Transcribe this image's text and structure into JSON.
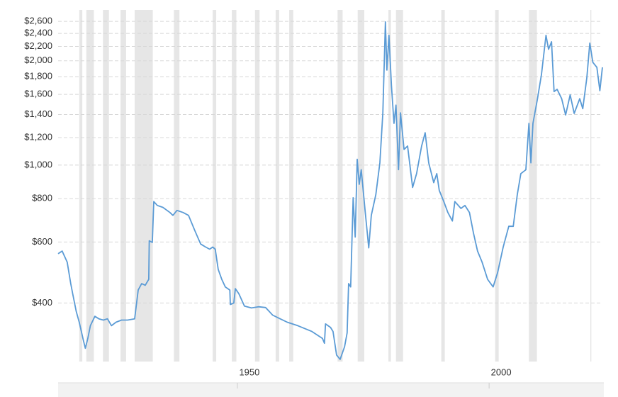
{
  "chart_data": {
    "type": "line",
    "log_scale": true,
    "grid": true,
    "xlim": [
      1914.4,
      2022.5
    ],
    "ylim": [
      271,
      2805
    ],
    "xticks": [
      1950,
      2000
    ],
    "yticks": [
      {
        "value": 400,
        "label": "$400"
      },
      {
        "value": 600,
        "label": "$600"
      },
      {
        "value": 800,
        "label": "$800"
      },
      {
        "value": 1000,
        "label": "$1,000"
      },
      {
        "value": 1200,
        "label": "$1,200"
      },
      {
        "value": 1400,
        "label": "$1,400"
      },
      {
        "value": 1600,
        "label": "$1,600"
      },
      {
        "value": 1800,
        "label": "$1,800"
      },
      {
        "value": 2000,
        "label": "$2,000"
      },
      {
        "value": 2200,
        "label": "$2,200"
      },
      {
        "value": 2400,
        "label": "$2,400"
      },
      {
        "value": 2600,
        "label": "$2,600"
      }
    ],
    "recession_color": "#e6e6e6",
    "recessions": [
      [
        1918.6,
        1919.2
      ],
      [
        1920,
        1921.5
      ],
      [
        1923.3,
        1924.5
      ],
      [
        1926.8,
        1927.9
      ],
      [
        1929.6,
        1933.2
      ],
      [
        1937.4,
        1938.5
      ],
      [
        1945.1,
        1945.8
      ],
      [
        1948.9,
        1949.8
      ],
      [
        1953.5,
        1954.4
      ],
      [
        1957.6,
        1958.3
      ],
      [
        1960.3,
        1961.1
      ],
      [
        1969.9,
        1970.9
      ],
      [
        1973.9,
        1975.2
      ],
      [
        1980,
        1980.5
      ],
      [
        1981.5,
        1982.9
      ],
      [
        1990.5,
        1991.2
      ],
      [
        2001.2,
        2001.9
      ],
      [
        2007.9,
        2009.5
      ],
      [
        2020.1,
        2020.3
      ]
    ],
    "x": [
      1914.4,
      1915.2,
      1916.2,
      1916.9,
      1917.3,
      1918,
      1918.6,
      1919.4,
      1919.8,
      1920.3,
      1920.8,
      1921.7,
      1922.5,
      1923.4,
      1924.2,
      1925,
      1925.9,
      1927,
      1928.2,
      1929.6,
      1930.3,
      1931,
      1931.7,
      1932.4,
      1932.5,
      1933.1,
      1933.4,
      1934.1,
      1935.2,
      1936.6,
      1937.2,
      1938,
      1939.2,
      1940.3,
      1941.5,
      1942.7,
      1943.7,
      1944.5,
      1945.1,
      1945.6,
      1946.2,
      1946.9,
      1947.6,
      1948.5,
      1948.6,
      1949.3,
      1949.6,
      1950.3,
      1951.4,
      1952.8,
      1954.2,
      1955.6,
      1957,
      1958.5,
      1959.9,
      1962,
      1964.8,
      1966.9,
      1967.3,
      1967.5,
      1968.5,
      1969,
      1969.7,
      1970.4,
      1971.3,
      1971.8,
      1972.1,
      1972.5,
      1973,
      1973.4,
      1973.8,
      1974.2,
      1974.6,
      1975.4,
      1976.1,
      1976.6,
      1977.5,
      1978.3,
      1978.9,
      1979.4,
      1979.7,
      1980.1,
      1980.6,
      1981.1,
      1981.5,
      1982,
      1982.4,
      1983.1,
      1983.8,
      1984.8,
      1985.6,
      1986.6,
      1987.3,
      1988,
      1989,
      1989.6,
      1990.1,
      1991,
      1991.8,
      1992.7,
      1993.2,
      1994.4,
      1995.2,
      1996.1,
      1996.9,
      1997.7,
      1998.6,
      1999.7,
      2000.8,
      2001.7,
      2002.8,
      2003.9,
      2004.8,
      2005.6,
      2006.3,
      2007.3,
      2007.9,
      2008.3,
      2008.7,
      2009.6,
      2010.4,
      2011.3,
      2011.8,
      2012.4,
      2012.9,
      2013.5,
      2014.4,
      2015.2,
      2016.1,
      2016.9,
      2018,
      2018.6,
      2019.4,
      2020,
      2020.6,
      2021.4,
      2022,
      2022.5
    ],
    "series": [
      {
        "color": "#5b9bd5",
        "values": [
          555,
          565,
          525,
          455,
          425,
          378,
          352,
          313,
          296,
          316,
          344,
          366,
          360,
          357,
          360,
          344,
          352,
          357,
          357,
          360,
          436,
          455,
          450,
          468,
          605,
          598,
          785,
          765,
          755,
          730,
          716,
          740,
          730,
          716,
          650,
          592,
          580,
          572,
          580,
          572,
          500,
          468,
          445,
          436,
          396,
          400,
          440,
          425,
          392,
          387,
          390,
          388,
          369,
          360,
          352,
          344,
          331,
          316,
          306,
          348,
          340,
          331,
          283,
          275,
          299,
          328,
          455,
          445,
          805,
          620,
          1040,
          880,
          970,
          730,
          577,
          716,
          822,
          1015,
          1415,
          2590,
          1880,
          2370,
          1700,
          1320,
          1490,
          970,
          1415,
          1110,
          1135,
          862,
          945,
          1135,
          1240,
          1015,
          890,
          945,
          845,
          785,
          730,
          690,
          785,
          750,
          765,
          730,
          636,
          565,
          525,
          468,
          445,
          490,
          580,
          666,
          666,
          822,
          945,
          970,
          1320,
          1015,
          1320,
          1555,
          1825,
          2370,
          2160,
          2270,
          1630,
          1655,
          1555,
          1395,
          1595,
          1410,
          1555,
          1455,
          1785,
          2250,
          1980,
          1915,
          1640,
          1915
        ]
      }
    ]
  }
}
